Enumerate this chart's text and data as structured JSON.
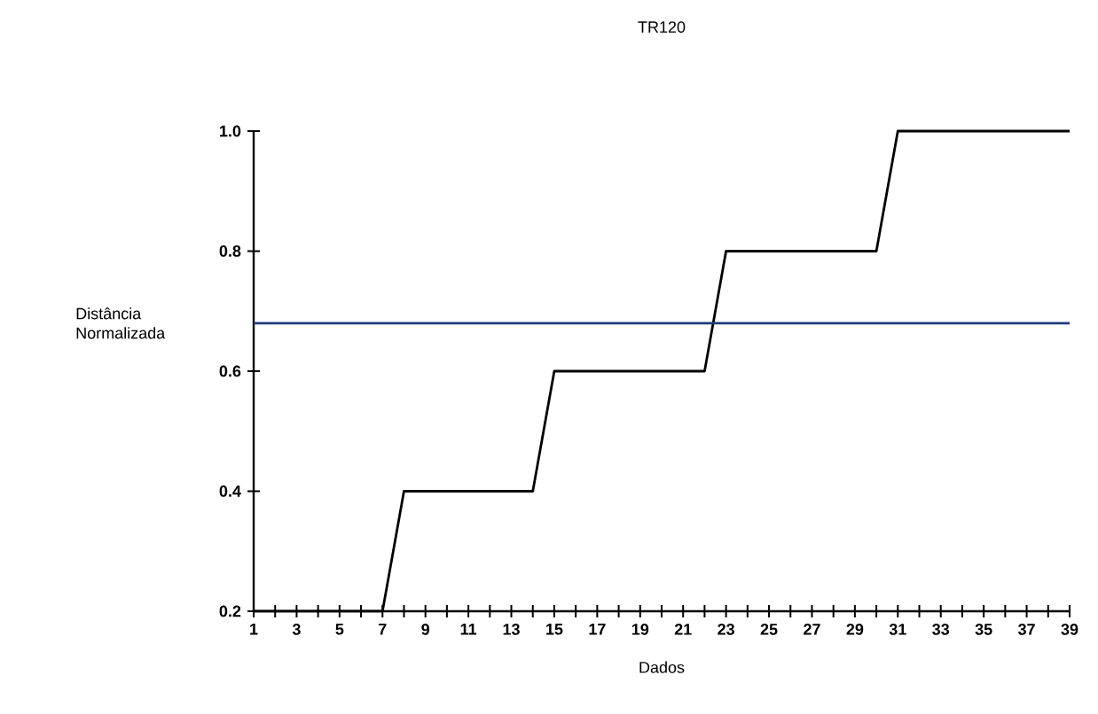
{
  "chart_data": {
    "type": "line",
    "title": "TR120",
    "xlabel": "Dados",
    "ylabel": "Distância Normalizada",
    "x": [
      1,
      2,
      3,
      4,
      5,
      6,
      7,
      8,
      9,
      10,
      11,
      12,
      13,
      14,
      15,
      16,
      17,
      18,
      19,
      20,
      21,
      22,
      23,
      24,
      25,
      26,
      27,
      28,
      29,
      30,
      31,
      32,
      33,
      34,
      35,
      36,
      37,
      38,
      39
    ],
    "series": [
      {
        "color": "#000000",
        "values": [
          0.2,
          0.2,
          0.2,
          0.2,
          0.2,
          0.2,
          0.2,
          0.4,
          0.4,
          0.4,
          0.4,
          0.4,
          0.4,
          0.4,
          0.6,
          0.6,
          0.6,
          0.6,
          0.6,
          0.6,
          0.6,
          0.6,
          0.8,
          0.8,
          0.8,
          0.8,
          0.8,
          0.8,
          0.8,
          0.8,
          1.0,
          1.0,
          1.0,
          1.0,
          1.0,
          1.0,
          1.0,
          1.0,
          1.0
        ]
      }
    ],
    "ref_lines": [
      {
        "axis": "y",
        "value": 0.68,
        "color": "#1f3a7a"
      }
    ],
    "xlim": [
      1,
      39
    ],
    "ylim": [
      0.2,
      1.0
    ],
    "xticks": [
      1,
      {
        "value": 2,
        "label": null
      },
      3,
      {
        "value": 4,
        "label": null
      },
      5,
      {
        "value": 6,
        "label": null
      },
      7,
      {
        "value": 8,
        "label": null
      },
      9,
      {
        "value": 10,
        "label": null
      },
      11,
      {
        "value": 12,
        "label": null
      },
      13,
      {
        "value": 14,
        "label": null
      },
      15,
      {
        "value": 16,
        "label": null
      },
      17,
      {
        "value": 18,
        "label": null
      },
      19,
      {
        "value": 20,
        "label": null
      },
      21,
      {
        "value": 22,
        "label": null
      },
      23,
      {
        "value": 24,
        "label": null
      },
      25,
      {
        "value": 26,
        "label": null
      },
      27,
      {
        "value": 28,
        "label": null
      },
      29,
      {
        "value": 30,
        "label": null
      },
      31,
      {
        "value": 32,
        "label": null
      },
      33,
      {
        "value": 34,
        "label": null
      },
      35,
      {
        "value": 36,
        "label": null
      },
      37,
      {
        "value": 38,
        "label": null
      },
      39
    ],
    "yticks": [
      0.2,
      0.4,
      0.6,
      0.8,
      {
        "value": 1,
        "label": "1.0"
      }
    ]
  }
}
